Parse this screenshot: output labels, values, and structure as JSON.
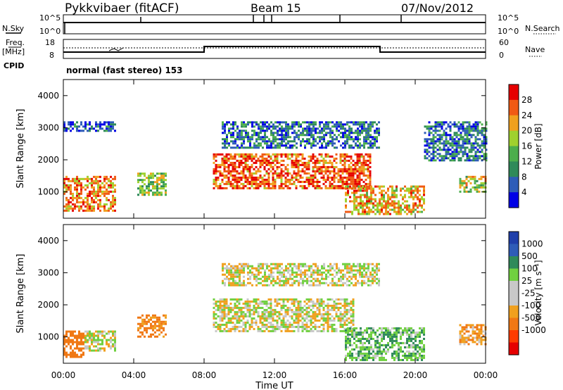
{
  "header": {
    "station": "Pykkvibaer (fitACF)",
    "beam": "Beam 15",
    "date": "07/Nov/2012"
  },
  "noise_panel": {
    "left_label": "N.Sky",
    "right_label": "N.Search",
    "left_ticks": [
      "10^5",
      "10^0"
    ],
    "right_ticks": [
      "10^5",
      "10^0"
    ]
  },
  "freq_panel": {
    "left_label_line1": "Freq.",
    "left_label_line2": "[MHz]",
    "left_ticks": [
      "18",
      "8"
    ],
    "right_label": "Nave",
    "right_ticks": [
      "60",
      "0"
    ]
  },
  "cpid": {
    "label": "CPID",
    "value": "normal (fast stereo) 153"
  },
  "x_axis": {
    "label": "Time UT",
    "ticks": [
      "00:00",
      "04:00",
      "08:00",
      "12:00",
      "16:00",
      "20:00",
      "00:00"
    ]
  },
  "power_panel": {
    "ylabel": "Slant Range [km]",
    "yticks": [
      "1000",
      "2000",
      "3000",
      "4000"
    ],
    "colorbar_label": "Power [dB]",
    "colorbar_ticks": [
      "4",
      "8",
      "12",
      "16",
      "20",
      "24",
      "28"
    ]
  },
  "velocity_panel": {
    "ylabel": "Slant Range [km]",
    "yticks": [
      "1000",
      "2000",
      "3000",
      "4000"
    ],
    "colorbar_label": "Velocity [m s⁻¹]",
    "colorbar_ticks": [
      "1000",
      "500",
      "100",
      "25",
      "-25",
      "-100",
      "-500",
      "-1000"
    ]
  },
  "colors": {
    "power_scale": [
      "#0000e6",
      "#2e5cb8",
      "#2f8a5a",
      "#4cae4c",
      "#9fd12e",
      "#f0a01e",
      "#f05a14",
      "#e60000"
    ],
    "velocity_scale": [
      "#e60000",
      "#ff3c00",
      "#f07814",
      "#f0a01e",
      "#c8c8c8",
      "#c8c8c8",
      "#70d040",
      "#2f8a5a",
      "#2e5cb8",
      "#1f3faa"
    ]
  },
  "chart_data": [
    {
      "type": "heatmap",
      "title": "Power",
      "xlabel": "Time UT",
      "ylabel": "Slant Range [km]",
      "xlim_hours": [
        0,
        24
      ],
      "ylim_km": [
        180,
        4500
      ],
      "colorbar_range_dB": [
        0,
        32
      ],
      "echo_regions": [
        {
          "t": [
            0.0,
            3.0
          ],
          "r": [
            400,
            1500
          ],
          "power_dB": 24
        },
        {
          "t": [
            0.0,
            3.0
          ],
          "r": [
            2900,
            3200
          ],
          "power_dB": 6
        },
        {
          "t": [
            4.2,
            5.8
          ],
          "r": [
            900,
            1600
          ],
          "power_dB": 16
        },
        {
          "t": [
            8.5,
            17.5
          ],
          "r": [
            1100,
            2200
          ],
          "power_dB": 26
        },
        {
          "t": [
            9.0,
            18.0
          ],
          "r": [
            2400,
            3200
          ],
          "power_dB": 8
        },
        {
          "t": [
            16.0,
            20.5
          ],
          "r": [
            300,
            1200
          ],
          "power_dB": 22
        },
        {
          "t": [
            20.5,
            24.0
          ],
          "r": [
            2000,
            3200
          ],
          "power_dB": 8
        },
        {
          "t": [
            22.5,
            24.0
          ],
          "r": [
            1000,
            1500
          ],
          "power_dB": 18
        }
      ]
    },
    {
      "type": "heatmap",
      "title": "Velocity",
      "xlabel": "Time UT",
      "ylabel": "Slant Range [km]",
      "xlim_hours": [
        0,
        24
      ],
      "ylim_km": [
        180,
        4500
      ],
      "colorbar_range_ms": [
        -1000,
        1000
      ],
      "echo_regions": [
        {
          "t": [
            0.0,
            1.2
          ],
          "r": [
            400,
            1200
          ],
          "velocity_ms": -200
        },
        {
          "t": [
            1.2,
            3.0
          ],
          "r": [
            600,
            1200
          ],
          "velocity_ms": 0
        },
        {
          "t": [
            4.2,
            5.8
          ],
          "r": [
            1000,
            1700
          ],
          "velocity_ms": -150
        },
        {
          "t": [
            8.5,
            16.5
          ],
          "r": [
            1200,
            2200
          ],
          "velocity_ms": 0
        },
        {
          "t": [
            9.0,
            18.0
          ],
          "r": [
            2600,
            3300
          ],
          "velocity_ms": 0
        },
        {
          "t": [
            16.0,
            20.5
          ],
          "r": [
            300,
            1300
          ],
          "velocity_ms": 80
        },
        {
          "t": [
            22.5,
            24.0
          ],
          "r": [
            800,
            1400
          ],
          "velocity_ms": -80
        }
      ]
    }
  ]
}
